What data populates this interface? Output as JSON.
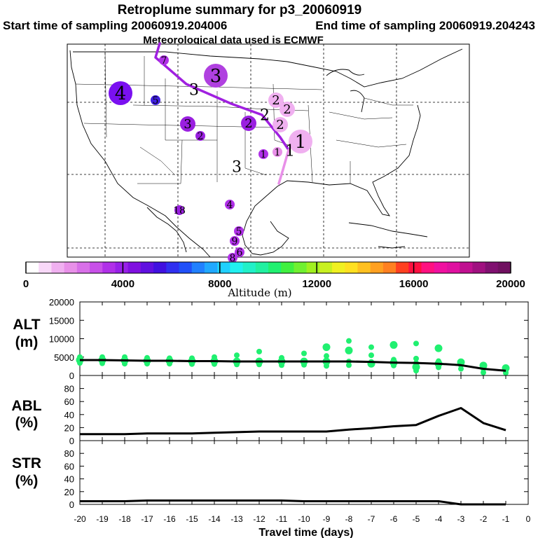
{
  "header": {
    "title": "Retroplume summary for p3_20060919",
    "start_label": "Start time of sampling 20060919.204006",
    "end_label": "End time of sampling 20060919.204243",
    "met_label": "Meteorological data used is ECMWF"
  },
  "colorbar": {
    "xlabel": "Altitude (m)",
    "ticks": [
      "0",
      "4000",
      "8000",
      "12000",
      "16000",
      "20000"
    ],
    "range": [
      0,
      20000
    ],
    "colors": [
      "#ffffff",
      "#f8d8f8",
      "#f0b0f0",
      "#e890e8",
      "#d870e8",
      "#c850e8",
      "#b030e8",
      "#9820e8",
      "#8010e0",
      "#6010e0",
      "#4010e0",
      "#3030f0",
      "#2050f8",
      "#2080ff",
      "#20a8ff",
      "#20d0ff",
      "#20f0f0",
      "#20f0c8",
      "#20f0a0",
      "#20f070",
      "#40f040",
      "#70f030",
      "#a0f020",
      "#c8f020",
      "#f0f020",
      "#ffe020",
      "#ffc020",
      "#ffa020",
      "#ff8020",
      "#ff4020",
      "#ff1040",
      "#ff1080",
      "#f010a0",
      "#e010a0",
      "#c01090",
      "#a01080",
      "#801070",
      "#701060"
    ]
  },
  "map": {
    "labels": [
      {
        "text": "4",
        "color": "#7a10f0",
        "size": "large"
      },
      {
        "text": "3",
        "color": "#b040e0",
        "size": "large"
      },
      {
        "text": "7",
        "color": "#b030e8",
        "size": "small"
      },
      {
        "text": "3",
        "color": "#000000",
        "size": "none"
      },
      {
        "text": "5",
        "color": "#4020e0",
        "size": "small"
      },
      {
        "text": "2",
        "color": "#f0b0f0",
        "size": "medium"
      },
      {
        "text": "2",
        "color": "#f0b0f0",
        "size": "medium"
      },
      {
        "text": "2",
        "color": "#000000",
        "size": "none"
      },
      {
        "text": "3",
        "color": "#9a20e0",
        "size": "medium"
      },
      {
        "text": "2",
        "color": "#9a20e0",
        "size": "medium"
      },
      {
        "text": "2",
        "color": "#f0b0f0",
        "size": "medium"
      },
      {
        "text": "2",
        "color": "#9a20e0",
        "size": "small"
      },
      {
        "text": "1",
        "color": "#f0b0f0",
        "size": "large"
      },
      {
        "text": "1",
        "color": "#e890e8",
        "size": "small"
      },
      {
        "text": "1",
        "color": "#000000",
        "size": "none"
      },
      {
        "text": "1",
        "color": "#b030e8",
        "size": "small"
      },
      {
        "text": "3",
        "color": "#000000",
        "size": "none"
      },
      {
        "text": "4",
        "color": "#b030e8",
        "size": "small"
      },
      {
        "text": "18",
        "color": "#9a20e0",
        "size": "small"
      },
      {
        "text": "5",
        "color": "#b030e8",
        "size": "small"
      },
      {
        "text": "9",
        "color": "#b030e8",
        "size": "small"
      },
      {
        "text": "6",
        "color": "#b030e8",
        "size": "small"
      },
      {
        "text": "8",
        "color": "#b030e8",
        "size": "small"
      }
    ]
  },
  "chart_data": [
    {
      "type": "scatter",
      "name": "ALT",
      "ylabel": "ALT (m)",
      "ylim": [
        0,
        20000
      ],
      "yticks": [
        "20000",
        "15000",
        "10000",
        "5000",
        "0"
      ],
      "x": [
        -20,
        -19,
        -18,
        -17,
        -16,
        -15,
        -14,
        -13,
        -12,
        -11,
        -10,
        -9,
        -8,
        -7,
        -6,
        -5,
        -4,
        -3,
        -2,
        -1
      ],
      "line_values": [
        4200,
        4200,
        4100,
        4000,
        4000,
        3900,
        3900,
        3800,
        3800,
        3800,
        3800,
        3800,
        3800,
        3700,
        3500,
        3400,
        3200,
        2800,
        1800,
        1300
      ],
      "points": [
        {
          "x": -20,
          "y": 4200
        },
        {
          "x": -20,
          "y": 3400
        },
        {
          "x": -20,
          "y": 5000
        },
        {
          "x": -19,
          "y": 4200
        },
        {
          "x": -19,
          "y": 3300
        },
        {
          "x": -19,
          "y": 5000
        },
        {
          "x": -18,
          "y": 4100
        },
        {
          "x": -18,
          "y": 3200
        },
        {
          "x": -18,
          "y": 5000
        },
        {
          "x": -17,
          "y": 4000
        },
        {
          "x": -17,
          "y": 3200
        },
        {
          "x": -17,
          "y": 4800
        },
        {
          "x": -16,
          "y": 4000
        },
        {
          "x": -16,
          "y": 3200
        },
        {
          "x": -16,
          "y": 4700
        },
        {
          "x": -15,
          "y": 3900
        },
        {
          "x": -15,
          "y": 3100
        },
        {
          "x": -15,
          "y": 4700
        },
        {
          "x": -14,
          "y": 3900
        },
        {
          "x": -14,
          "y": 3100
        },
        {
          "x": -14,
          "y": 5000
        },
        {
          "x": -13,
          "y": 3800
        },
        {
          "x": -13,
          "y": 3000
        },
        {
          "x": -13,
          "y": 5500
        },
        {
          "x": -12,
          "y": 3800
        },
        {
          "x": -12,
          "y": 3000
        },
        {
          "x": -12,
          "y": 6500
        },
        {
          "x": -11,
          "y": 3800
        },
        {
          "x": -11,
          "y": 2800
        },
        {
          "x": -11,
          "y": 4800
        },
        {
          "x": -10,
          "y": 3800
        },
        {
          "x": -10,
          "y": 2900
        },
        {
          "x": -10,
          "y": 6000
        },
        {
          "x": -9,
          "y": 3800
        },
        {
          "x": -9,
          "y": 2600
        },
        {
          "x": -9,
          "y": 5300
        },
        {
          "x": -9,
          "y": 7700
        },
        {
          "x": -8,
          "y": 3800
        },
        {
          "x": -8,
          "y": 2800
        },
        {
          "x": -8,
          "y": 6800
        },
        {
          "x": -8,
          "y": 9400
        },
        {
          "x": -7,
          "y": 3700
        },
        {
          "x": -7,
          "y": 3200
        },
        {
          "x": -7,
          "y": 5500
        },
        {
          "x": -7,
          "y": 7700
        },
        {
          "x": -6,
          "y": 3500
        },
        {
          "x": -6,
          "y": 2700
        },
        {
          "x": -6,
          "y": 4300
        },
        {
          "x": -6,
          "y": 8300
        },
        {
          "x": -5,
          "y": 3400
        },
        {
          "x": -5,
          "y": 1300
        },
        {
          "x": -5,
          "y": 2300
        },
        {
          "x": -5,
          "y": 4600
        },
        {
          "x": -5,
          "y": 8700
        },
        {
          "x": -4,
          "y": 3200
        },
        {
          "x": -4,
          "y": 2200
        },
        {
          "x": -4,
          "y": 3900
        },
        {
          "x": -4,
          "y": 7400
        },
        {
          "x": -3,
          "y": 2800
        },
        {
          "x": -3,
          "y": 1800
        },
        {
          "x": -3,
          "y": 3600
        },
        {
          "x": -2,
          "y": 1800
        },
        {
          "x": -2,
          "y": 800
        },
        {
          "x": -2,
          "y": 2700
        },
        {
          "x": -1,
          "y": 1300
        },
        {
          "x": -1,
          "y": 700
        },
        {
          "x": -1,
          "y": 2000
        }
      ]
    },
    {
      "type": "line",
      "name": "ABL",
      "ylabel": "ABL (%)",
      "ylim": [
        0,
        100
      ],
      "yticks": [
        "80",
        "60",
        "40",
        "20",
        "0"
      ],
      "x": [
        -20,
        -19,
        -18,
        -17,
        -16,
        -15,
        -14,
        -13,
        -12,
        -11,
        -10,
        -9,
        -8,
        -7,
        -6,
        -5,
        -4,
        -3,
        -2,
        -1
      ],
      "values": [
        10,
        10,
        10,
        11,
        11,
        11,
        12,
        13,
        14,
        14,
        14,
        14,
        17,
        19,
        22,
        24,
        38,
        50,
        27,
        16
      ]
    },
    {
      "type": "line",
      "name": "STR",
      "ylabel": "STR (%)",
      "ylim": [
        0,
        100
      ],
      "yticks": [
        "80",
        "60",
        "40",
        "20",
        "0"
      ],
      "xlabel": "Travel time (days)",
      "xticks": [
        "-20",
        "-19",
        "-18",
        "-17",
        "-16",
        "-15",
        "-14",
        "-13",
        "-12",
        "-11",
        "-10",
        "-9",
        "-8",
        "-7",
        "-6",
        "-5",
        "-4",
        "-3",
        "-2",
        "-1",
        "0"
      ],
      "x": [
        -20,
        -19,
        -18,
        -17,
        -16,
        -15,
        -14,
        -13,
        -12,
        -11,
        -10,
        -9,
        -8,
        -7,
        -6,
        -5,
        -4,
        -3,
        -2,
        -1
      ],
      "values": [
        5,
        5,
        5,
        6,
        6,
        6,
        6,
        6,
        6,
        6,
        5,
        5,
        5,
        5,
        5,
        5,
        5,
        0,
        0,
        0
      ]
    }
  ]
}
